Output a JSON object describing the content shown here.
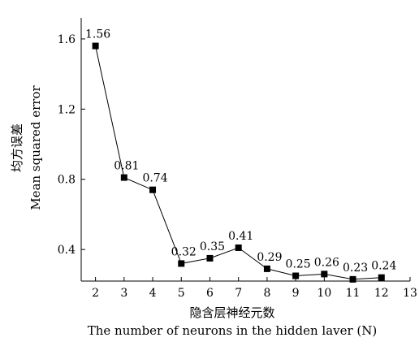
{
  "chart_data": {
    "type": "line",
    "title": "",
    "x": [
      2,
      3,
      4,
      5,
      6,
      7,
      8,
      9,
      10,
      11,
      12
    ],
    "series": [
      {
        "name": "",
        "values": [
          1.56,
          0.81,
          0.74,
          0.32,
          0.35,
          0.41,
          0.29,
          0.25,
          0.26,
          0.23,
          0.24
        ],
        "labels": [
          "1.56",
          "0.81",
          "0.74",
          "0.32",
          "0.35",
          "0.41",
          "0.29",
          "0.25",
          "0.26",
          "0.23",
          "0.24"
        ]
      }
    ],
    "xlabel_cn": "隐含层神经元数",
    "xlabel_en": "The number of neurons in the hidden laver (N)",
    "ylabel_cn": "均方误差",
    "ylabel_en": "Mean squared error",
    "xlim": [
      1.5,
      13
    ],
    "ylim": [
      0.22,
      1.72
    ],
    "xticks": [
      2,
      3,
      4,
      5,
      6,
      7,
      8,
      9,
      10,
      11,
      12,
      13
    ],
    "xtick_labels": [
      "2",
      "3",
      "4",
      "5",
      "6",
      "7",
      "8",
      "9",
      "10",
      "11",
      "12",
      "13"
    ],
    "yticks": [
      0.4,
      0.8,
      1.2,
      1.6
    ],
    "ytick_labels": [
      "0.4",
      "0.8",
      "1.2",
      "1.6"
    ],
    "grid": false,
    "marker": "square",
    "line_color": "#000000"
  }
}
